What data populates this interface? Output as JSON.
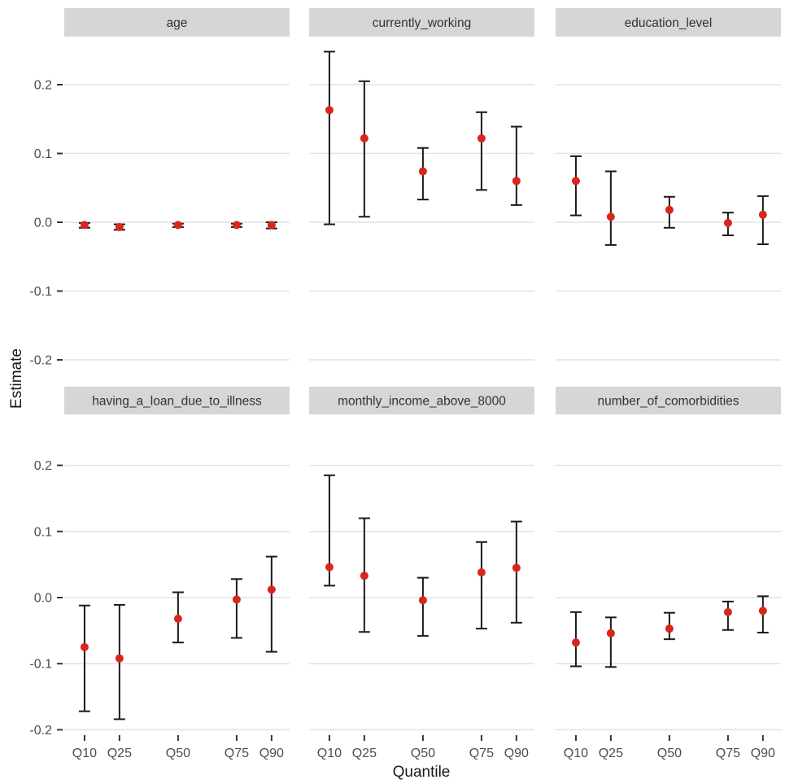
{
  "chart_data": {
    "type": "scatter",
    "subtype": "pointrange-with-errorbars",
    "title": "",
    "xlabel": "Quantile",
    "ylabel": "Estimate",
    "x_categories": [
      "Q10",
      "Q25",
      "Q50",
      "Q75",
      "Q90"
    ],
    "x_values": [
      0.1,
      0.25,
      0.5,
      0.75,
      0.9
    ],
    "y_tick_labels": [
      "0.2",
      "0.1",
      "0.0",
      "-0.1",
      "-0.2"
    ],
    "y_tick_values": [
      0.2,
      0.1,
      0.0,
      -0.1,
      -0.2
    ],
    "ylim": [
      -0.21,
      0.27
    ],
    "grid": "horizontal-major-only",
    "legend": "none",
    "facet_layout": {
      "rows": 2,
      "cols": 3
    },
    "colors": {
      "point": "#d7261d",
      "errorbar": "#1a1a1a",
      "gridline": "#e2e2e2",
      "strip_bg": "#d6d6d6",
      "strip_text": "#333333",
      "tick_text": "#4d4d4d",
      "tick_mark": "#333333",
      "axis_title": "#1a1a1a",
      "background": "#ffffff"
    },
    "facets": [
      {
        "label": "age",
        "row": 0,
        "col": 0,
        "estimates": [
          -0.004,
          -0.007,
          -0.004,
          -0.004,
          -0.004
        ],
        "lower": [
          -0.008,
          -0.011,
          -0.007,
          -0.007,
          -0.009
        ],
        "upper": [
          -0.001,
          -0.003,
          -0.002,
          -0.002,
          0.0
        ]
      },
      {
        "label": "currently_working",
        "row": 0,
        "col": 1,
        "estimates": [
          0.163,
          0.122,
          0.074,
          0.122,
          0.06
        ],
        "lower": [
          -0.003,
          0.008,
          0.033,
          0.047,
          0.025
        ],
        "upper": [
          0.248,
          0.205,
          0.108,
          0.16,
          0.139
        ]
      },
      {
        "label": "education_level",
        "row": 0,
        "col": 2,
        "estimates": [
          0.06,
          0.008,
          0.018,
          -0.001,
          0.011
        ],
        "lower": [
          0.01,
          -0.033,
          -0.008,
          -0.019,
          -0.032
        ],
        "upper": [
          0.096,
          0.074,
          0.037,
          0.014,
          0.038
        ]
      },
      {
        "label": "having_a_loan_due_to_illness",
        "row": 1,
        "col": 0,
        "estimates": [
          -0.075,
          -0.092,
          -0.032,
          -0.003,
          0.012
        ],
        "lower": [
          -0.172,
          -0.184,
          -0.068,
          -0.061,
          -0.082
        ],
        "upper": [
          -0.012,
          -0.011,
          0.008,
          0.028,
          0.062
        ]
      },
      {
        "label": "monthly_income_above_8000",
        "row": 1,
        "col": 1,
        "estimates": [
          0.046,
          0.033,
          -0.004,
          0.038,
          0.045
        ],
        "lower": [
          0.018,
          -0.052,
          -0.058,
          -0.047,
          -0.038
        ],
        "upper": [
          0.185,
          0.12,
          0.03,
          0.084,
          0.115
        ]
      },
      {
        "label": "number_of_comorbidities",
        "row": 1,
        "col": 2,
        "estimates": [
          -0.068,
          -0.054,
          -0.047,
          -0.022,
          -0.02
        ],
        "lower": [
          -0.104,
          -0.105,
          -0.063,
          -0.049,
          -0.053
        ],
        "upper": [
          -0.022,
          -0.03,
          -0.023,
          -0.006,
          0.002
        ]
      }
    ]
  }
}
